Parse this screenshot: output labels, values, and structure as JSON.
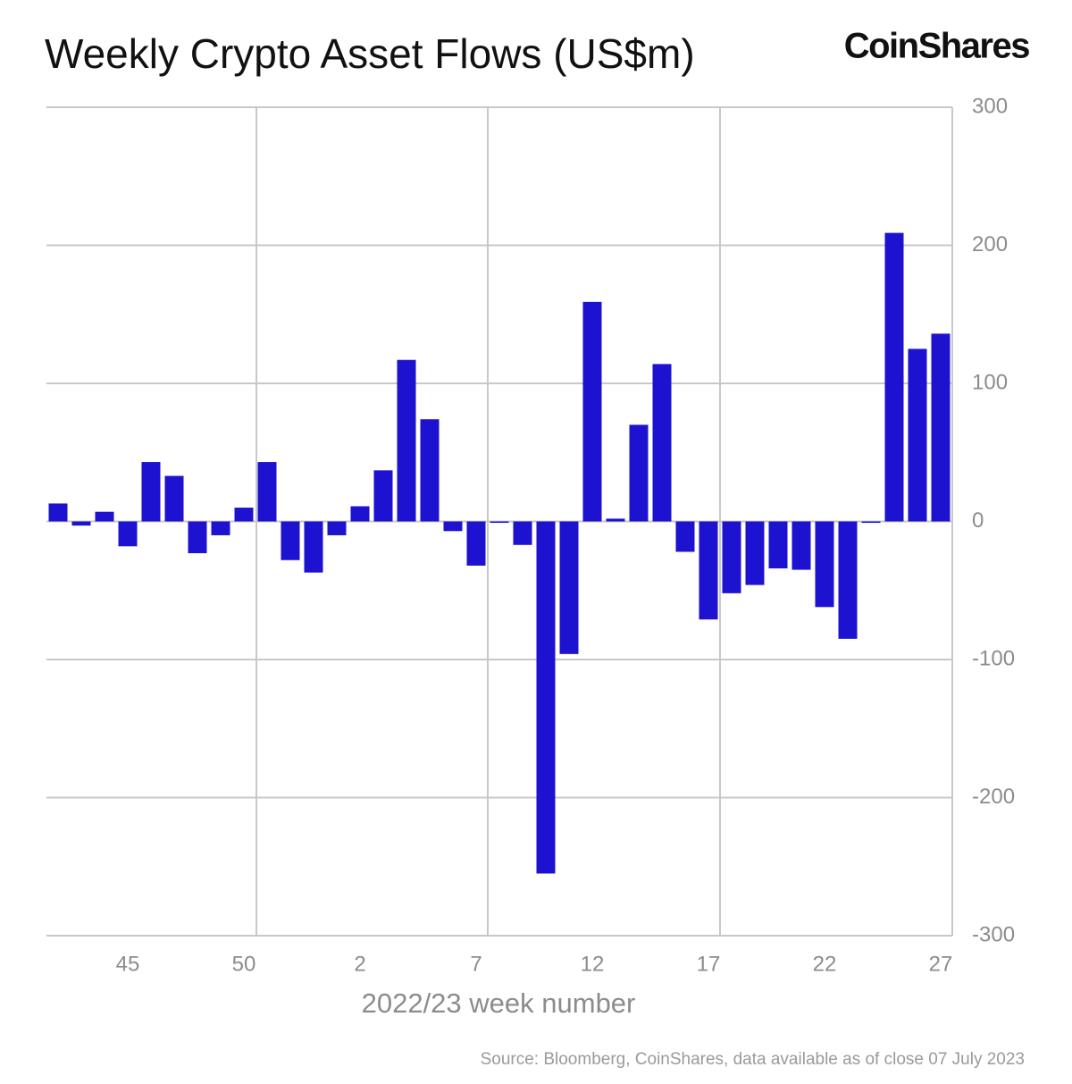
{
  "chart_data": {
    "type": "bar",
    "title": "Weekly Crypto Asset Flows (US$m)",
    "brand": "CoinShares",
    "x_label": "2022/23 week number",
    "source": "Source: Bloomberg, CoinShares, data available as of close 07 July 2023",
    "categories": [
      null,
      null,
      null,
      "45",
      null,
      null,
      null,
      null,
      "50",
      null,
      null,
      null,
      null,
      "2",
      null,
      null,
      null,
      null,
      "7",
      null,
      null,
      null,
      null,
      "12",
      null,
      null,
      null,
      null,
      "17",
      null,
      null,
      null,
      null,
      "22",
      null,
      null,
      null,
      null,
      "27"
    ],
    "values": [
      13,
      -3,
      7,
      -18,
      43,
      33,
      -23,
      -10,
      10,
      43,
      -28,
      -37,
      -10,
      11,
      37,
      117,
      74,
      -7,
      -32,
      -1,
      -17,
      -255,
      -96,
      159,
      2,
      70,
      114,
      -22,
      -71,
      -52,
      -46,
      -34,
      -35,
      -62,
      -85,
      -1,
      209,
      125,
      136
    ],
    "color": "#1c12d0",
    "ylim": [
      -300,
      300
    ],
    "yticks": [
      -300,
      -200,
      -100,
      0,
      100,
      200,
      300
    ],
    "grid": true
  }
}
